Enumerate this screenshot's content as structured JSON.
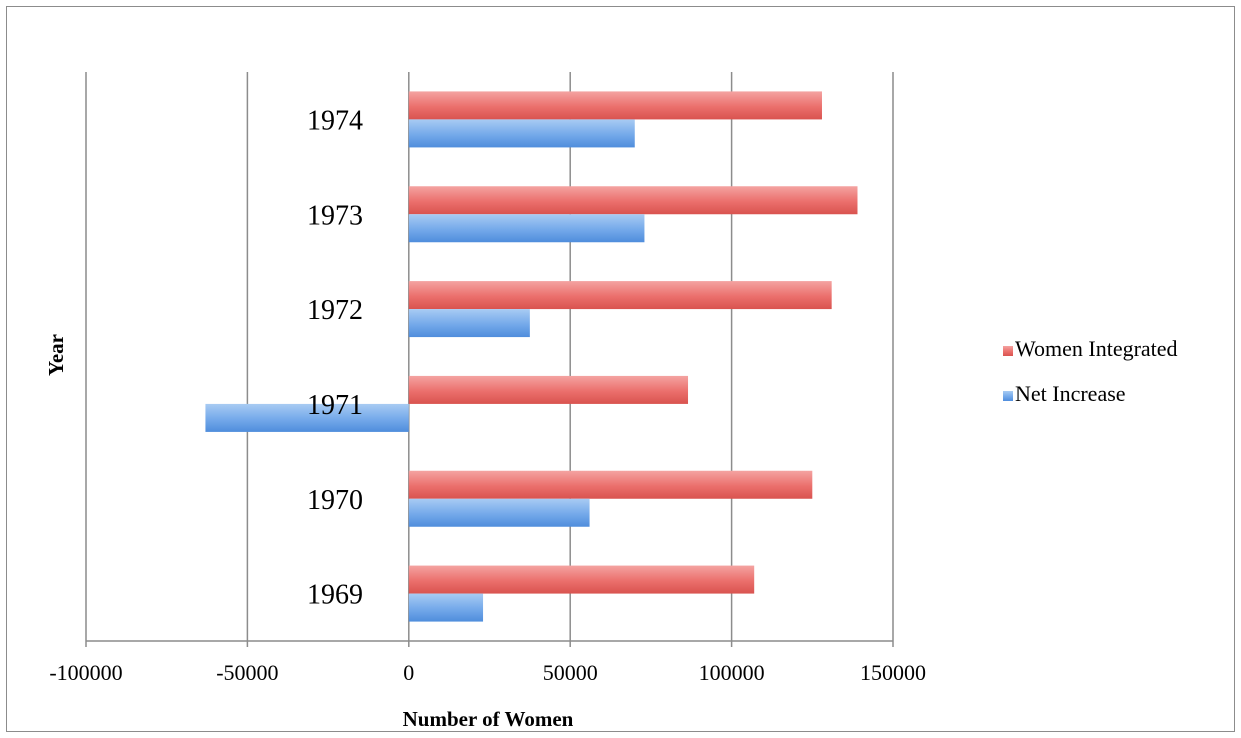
{
  "chart_data": {
    "type": "bar",
    "orientation": "horizontal",
    "title": "",
    "xlabel": "Number of Women",
    "ylabel": "Year",
    "xlim": [
      -100000,
      150000
    ],
    "x_ticks": [
      -100000,
      -50000,
      0,
      50000,
      100000,
      150000
    ],
    "x_tick_labels": [
      "-100000",
      "-50000",
      "0",
      "50000",
      "100000",
      "150000"
    ],
    "categories": [
      "1969",
      "1970",
      "1971",
      "1972",
      "1973",
      "1974"
    ],
    "series": [
      {
        "name": "Women Integrated",
        "color": "#e86563",
        "values": [
          107000,
          125000,
          86500,
          131000,
          139000,
          128000
        ]
      },
      {
        "name": "Net Increase",
        "color": "#6aa2e8",
        "values": [
          23000,
          56000,
          -63000,
          37500,
          73000,
          70000
        ]
      }
    ],
    "grid": "vertical-major",
    "legend_position": "right"
  }
}
